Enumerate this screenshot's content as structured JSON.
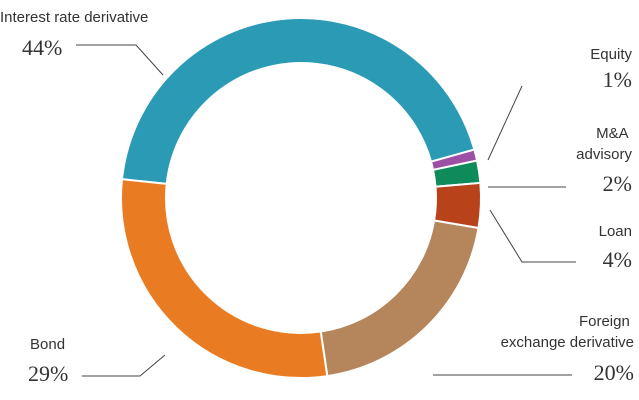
{
  "chart_data": {
    "type": "donut",
    "categories": [
      "Interest rate derivative",
      "Equity",
      "M&A advisory",
      "Loan",
      "Foreign exchange derivative",
      "Bond"
    ],
    "values": [
      44,
      1,
      2,
      4,
      20,
      29
    ],
    "value_labels": [
      "44%",
      "1%",
      "2%",
      "4%",
      "20%",
      "29%"
    ],
    "colors": [
      "#2a9ab5",
      "#9b4fa5",
      "#0f8a5a",
      "#b8431b",
      "#b5865c",
      "#e97c22"
    ]
  }
}
